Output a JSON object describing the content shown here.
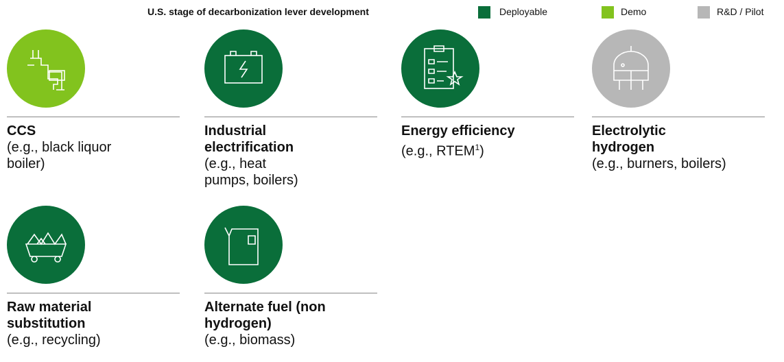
{
  "legend": {
    "title": "U.S. stage of decarbonization lever development",
    "items": [
      {
        "label": "Deployable",
        "color": "#0a6e3a"
      },
      {
        "label": "Demo",
        "color": "#82c31e"
      },
      {
        "label": "R&D / Pilot",
        "color": "#b7b7b7"
      }
    ]
  },
  "levers": [
    {
      "title_lines": [
        "CCS"
      ],
      "example_lines": [
        {
          "text": "(e.g., black liquor"
        },
        {
          "text": "boiler)"
        }
      ],
      "stage": 1,
      "icon": "pipe"
    },
    {
      "title_lines": [
        "Industrial",
        "electrification"
      ],
      "example_lines": [
        {
          "text": "(e.g., heat"
        },
        {
          "text": "pumps, boilers)"
        }
      ],
      "stage": 0,
      "icon": "battery"
    },
    {
      "title_lines": [
        "Energy efficiency"
      ],
      "example_lines": [
        {
          "text": "(e.g., RTEM",
          "sup": "1",
          "after": ")"
        }
      ],
      "stage": 0,
      "icon": "checklist"
    },
    {
      "title_lines": [
        "Electrolytic",
        "hydrogen"
      ],
      "example_lines": [
        {
          "text": "(e.g., burners, boilers)"
        }
      ],
      "stage": 2,
      "icon": "tank"
    },
    {
      "title_lines": [
        "Raw material",
        "substitution"
      ],
      "example_lines": [
        {
          "text": "(e.g., recycling)"
        }
      ],
      "stage": 0,
      "icon": "cart"
    },
    {
      "title_lines": [
        "Alternate fuel (non",
        "hydrogen)"
      ],
      "example_lines": [
        {
          "text": "(e.g., biomass)"
        }
      ],
      "stage": 0,
      "icon": "canister"
    }
  ]
}
